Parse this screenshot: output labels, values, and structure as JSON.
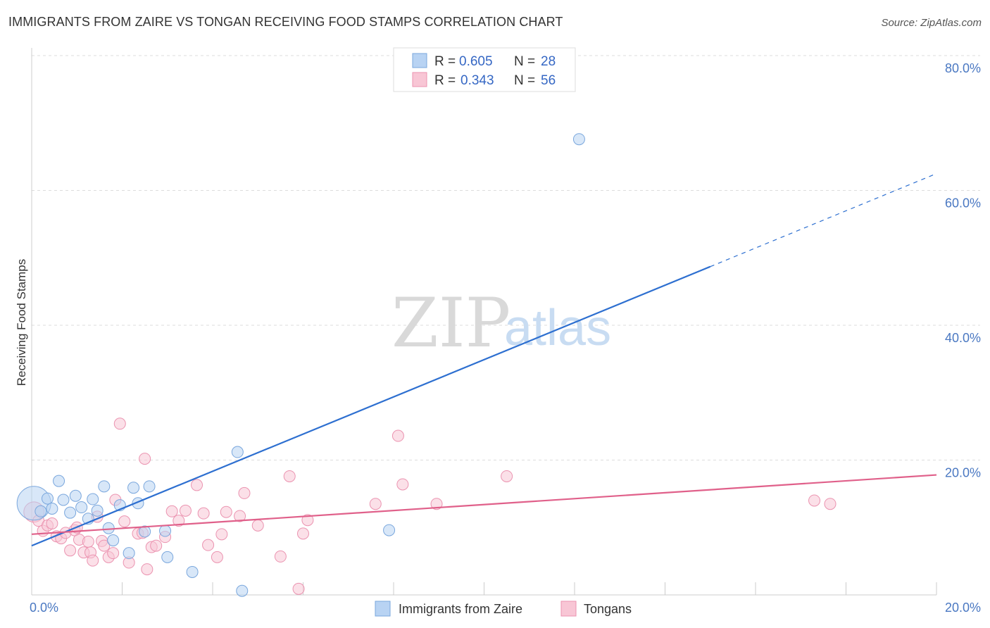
{
  "header": {
    "title": "IMMIGRANTS FROM ZAIRE VS TONGAN RECEIVING FOOD STAMPS CORRELATION CHART",
    "source": "Source: ZipAtlas.com"
  },
  "watermark": {
    "zip": "ZIP",
    "atlas": "atlas"
  },
  "colors": {
    "blue_fill": "#b8d3f3",
    "blue_stroke": "#7aa7dd",
    "blue_line": "#2d6fd0",
    "pink_fill": "#f8c6d5",
    "pink_stroke": "#eb93b0",
    "pink_line": "#e0608a",
    "grid": "#dddddd",
    "tick_text": "#4a78c2"
  },
  "legend": {
    "r_label": "R =",
    "n_label": "N =",
    "series": [
      {
        "r": "0.605",
        "n": "28"
      },
      {
        "r": "0.343",
        "n": "56"
      }
    ]
  },
  "chart_data": {
    "type": "scatter",
    "title": "IMMIGRANTS FROM ZAIRE VS TONGAN RECEIVING FOOD STAMPS CORRELATION CHART",
    "xlabel": "",
    "ylabel": "Receiving Food Stamps",
    "xlim": [
      0,
      20
    ],
    "ylim": [
      0,
      80
    ],
    "x_tick_labels": [
      "0.0%",
      "20.0%"
    ],
    "y_ticks": [
      20,
      40,
      60,
      80
    ],
    "y_tick_labels": [
      "20.0%",
      "40.0%",
      "60.0%",
      "80.0%"
    ],
    "grid": true,
    "legend_position": "top-center",
    "series": [
      {
        "name": "Immigrants from Zaire",
        "r": 0.605,
        "n": 28,
        "trend": {
          "x0": 0,
          "y0": 7.3,
          "x1": 15.0,
          "y1": 48.7,
          "dash_to_x": 20.0,
          "dash_to_y": 62.5
        },
        "points": [
          [
            0.05,
            13.6,
            3.0
          ],
          [
            0.2,
            12.4,
            1.0
          ],
          [
            0.35,
            14.3,
            1.0
          ],
          [
            0.45,
            12.8,
            1.0
          ],
          [
            0.6,
            16.9,
            1.0
          ],
          [
            0.7,
            14.1,
            1.0
          ],
          [
            0.85,
            12.2,
            1.0
          ],
          [
            0.97,
            14.7,
            1.0
          ],
          [
            1.1,
            13.0,
            1.0
          ],
          [
            1.25,
            11.3,
            1.0
          ],
          [
            1.35,
            14.2,
            1.0
          ],
          [
            1.45,
            12.5,
            1.0
          ],
          [
            1.6,
            16.1,
            1.0
          ],
          [
            1.7,
            9.9,
            1.0
          ],
          [
            1.8,
            8.1,
            1.0
          ],
          [
            1.95,
            13.3,
            1.0
          ],
          [
            2.15,
            6.2,
            1.0
          ],
          [
            2.25,
            15.9,
            1.0
          ],
          [
            2.35,
            13.6,
            1.0
          ],
          [
            2.5,
            9.4,
            1.0
          ],
          [
            2.6,
            16.1,
            1.0
          ],
          [
            2.95,
            9.5,
            1.0
          ],
          [
            3.0,
            5.6,
            1.0
          ],
          [
            3.55,
            3.4,
            1.0
          ],
          [
            4.55,
            21.2,
            1.0
          ],
          [
            4.65,
            0.6,
            1.0
          ],
          [
            7.9,
            9.6,
            1.0
          ],
          [
            12.1,
            67.6,
            1.0
          ]
        ]
      },
      {
        "name": "Tongans",
        "r": 0.343,
        "n": 56,
        "trend": {
          "x0": 0,
          "y0": 9.0,
          "x1": 20.0,
          "y1": 17.8
        },
        "points": [
          [
            0.05,
            12.3,
            1.8
          ],
          [
            0.15,
            11.0,
            1.0
          ],
          [
            0.25,
            9.5,
            1.0
          ],
          [
            0.35,
            10.3,
            1.0
          ],
          [
            0.45,
            10.6,
            1.0
          ],
          [
            0.55,
            8.7,
            1.0
          ],
          [
            0.65,
            8.4,
            1.0
          ],
          [
            0.75,
            9.2,
            1.0
          ],
          [
            0.85,
            6.6,
            1.0
          ],
          [
            0.95,
            9.6,
            1.0
          ],
          [
            1.0,
            10.0,
            1.0
          ],
          [
            1.05,
            8.2,
            1.0
          ],
          [
            1.15,
            6.3,
            1.0
          ],
          [
            1.25,
            7.9,
            1.0
          ],
          [
            1.3,
            6.3,
            1.0
          ],
          [
            1.35,
            5.1,
            1.0
          ],
          [
            1.45,
            11.6,
            1.0
          ],
          [
            1.55,
            8.0,
            1.0
          ],
          [
            1.6,
            7.3,
            1.0
          ],
          [
            1.7,
            5.6,
            1.0
          ],
          [
            1.8,
            6.2,
            1.0
          ],
          [
            1.85,
            14.1,
            1.0
          ],
          [
            1.95,
            25.4,
            1.0
          ],
          [
            2.05,
            10.9,
            1.0
          ],
          [
            2.15,
            4.8,
            1.0
          ],
          [
            2.35,
            9.1,
            1.0
          ],
          [
            2.45,
            9.2,
            1.0
          ],
          [
            2.5,
            20.2,
            1.0
          ],
          [
            2.55,
            3.8,
            1.0
          ],
          [
            2.65,
            7.1,
            1.0
          ],
          [
            2.75,
            7.3,
            1.0
          ],
          [
            2.95,
            8.6,
            1.0
          ],
          [
            3.1,
            12.4,
            1.0
          ],
          [
            3.25,
            11.0,
            1.0
          ],
          [
            3.4,
            12.5,
            1.0
          ],
          [
            3.65,
            16.3,
            1.0
          ],
          [
            3.8,
            12.1,
            1.0
          ],
          [
            3.9,
            7.4,
            1.0
          ],
          [
            4.1,
            5.6,
            1.0
          ],
          [
            4.2,
            9.0,
            1.0
          ],
          [
            4.3,
            12.3,
            1.0
          ],
          [
            4.6,
            11.7,
            1.0
          ],
          [
            4.7,
            15.1,
            1.0
          ],
          [
            5.0,
            10.3,
            1.0
          ],
          [
            5.5,
            5.7,
            1.0
          ],
          [
            5.7,
            17.6,
            1.0
          ],
          [
            5.9,
            0.9,
            1.0
          ],
          [
            6.0,
            9.1,
            1.0
          ],
          [
            6.1,
            11.1,
            1.0
          ],
          [
            7.6,
            13.5,
            1.0
          ],
          [
            8.1,
            23.6,
            1.0
          ],
          [
            8.2,
            16.4,
            1.0
          ],
          [
            8.95,
            13.5,
            1.0
          ],
          [
            10.5,
            17.6,
            1.0
          ],
          [
            17.3,
            14.0,
            1.0
          ],
          [
            17.65,
            13.5,
            1.0
          ]
        ]
      }
    ]
  }
}
